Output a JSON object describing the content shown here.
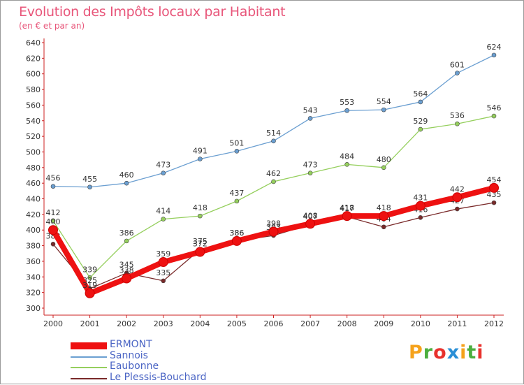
{
  "title": "Evolution des Impôts locaux par Habitant",
  "subtitle": "(en € et par an)",
  "logo": [
    "P",
    "r",
    "o",
    "x",
    "i",
    "t",
    "i"
  ],
  "logo_colors": [
    "#f5a21b",
    "#4caf3f",
    "#e8322d",
    "#2a8fd6",
    "#f5a21b",
    "#4caf3f",
    "#e8322d"
  ],
  "chart_data": {
    "type": "line",
    "x": [
      "2000",
      "2001",
      "2002",
      "2003",
      "2004",
      "2005",
      "2006",
      "2007",
      "2008",
      "2009",
      "2010",
      "2011",
      "2012"
    ],
    "ylim": [
      300,
      640
    ],
    "yticks": [
      300,
      320,
      340,
      360,
      380,
      400,
      420,
      440,
      460,
      480,
      500,
      520,
      540,
      560,
      580,
      600,
      620,
      640
    ],
    "grid": false,
    "series": [
      {
        "name": "Sannois",
        "color": "#6b9fd1",
        "values": [
          456,
          455,
          460,
          473,
          491,
          501,
          514,
          543,
          553,
          554,
          564,
          601,
          624
        ],
        "labels": [
          "456",
          "455",
          "460",
          "473",
          "491",
          "501",
          "514",
          "543",
          "553",
          "554",
          "564",
          "601",
          "624"
        ]
      },
      {
        "name": "Eaubonne",
        "color": "#95cf5d",
        "values": [
          412,
          339,
          386,
          414,
          418,
          437,
          462,
          473,
          484,
          480,
          529,
          536,
          546
        ],
        "labels": [
          "412",
          "339",
          "386",
          "414",
          "418",
          "437",
          "462",
          "473",
          "484",
          "480",
          "529",
          "536",
          "546"
        ]
      },
      {
        "name": "Le Plessis-Bouchard",
        "color": "#7a2a2a",
        "values": [
          382,
          325,
          345,
          335,
          375,
          386,
          393,
          407,
          417,
          404,
          416,
          427,
          435
        ],
        "labels": [
          "382",
          "325",
          "345",
          "335",
          "375",
          "386",
          "393",
          "407",
          "417",
          "404",
          "416",
          "427",
          "435"
        ]
      },
      {
        "name": "ERMONT",
        "color": "#ee1111",
        "values": [
          400,
          319,
          338,
          359,
          372,
          386,
          398,
          408,
          418,
          418,
          431,
          442,
          454
        ],
        "labels": [
          "400",
          "319",
          "338",
          "359",
          "372",
          "386",
          "398",
          "408",
          "418",
          "418",
          "431",
          "442",
          "454"
        ]
      }
    ],
    "legend": [
      "ERMONT",
      "Sannois",
      "Eaubonne",
      "Le Plessis-Bouchard"
    ],
    "legend_position": "bottom-left"
  }
}
